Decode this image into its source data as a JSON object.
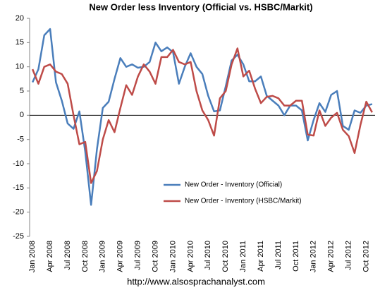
{
  "chart_data": {
    "type": "line",
    "title": "New Order less Inventory (Official vs. HSBC/Markit)",
    "source": "http://www.alsosprachanalyst.com",
    "categories": [
      "Jan 2008",
      null,
      null,
      "Apr 2008",
      null,
      null,
      "Jul 2008",
      null,
      null,
      "Oct 2008",
      null,
      null,
      "Jan 2009",
      null,
      null,
      "Apr 2009",
      null,
      null,
      "Jul 2009",
      null,
      null,
      "Oct 2009",
      null,
      null,
      "Jan 2010",
      null,
      null,
      "Apr 2010",
      null,
      null,
      "Jul 2010",
      null,
      null,
      "Oct 2010",
      null,
      null,
      "Jan 2011",
      null,
      null,
      "Apr 2011",
      null,
      null,
      "Jul 2011",
      null,
      null,
      "Oct 2011",
      null,
      null,
      "Jan 2012",
      null,
      null,
      "Apr 2012",
      null,
      null,
      "Jul 2012",
      null,
      null,
      "Oct 2012",
      null
    ],
    "series": [
      {
        "name": "New Order - Inventory (Official)",
        "color": "#4a7ebb",
        "values": [
          6.8,
          9.5,
          16.5,
          17.8,
          6.8,
          3,
          -1.7,
          -2.8,
          0.8,
          -7.5,
          -18.5,
          -7,
          1.5,
          2.8,
          7.5,
          11.8,
          10,
          10.5,
          9.8,
          10,
          11,
          15,
          13.2,
          14,
          13,
          6.5,
          10,
          12.8,
          10,
          8.5,
          4,
          0.8,
          1,
          6,
          11.3,
          12.5,
          10.5,
          7,
          7,
          8,
          4,
          3,
          2,
          0,
          2,
          2,
          1,
          -5.2,
          -1,
          2.5,
          0.7,
          4.2,
          5,
          -2.2,
          -3,
          1,
          0.5,
          2,
          2.3
        ]
      },
      {
        "name": "New Order - Inventory (HSBC/Markit)",
        "color": "#be4b48",
        "values": [
          9.5,
          6.5,
          10,
          10.5,
          9,
          8.5,
          6.5,
          0,
          -6,
          -5.5,
          -14,
          -11.5,
          -5,
          -1,
          -3.5,
          1.5,
          6.2,
          4.2,
          8,
          10.5,
          9,
          6.5,
          12,
          12,
          13.5,
          11,
          10.5,
          11,
          5,
          1,
          -1,
          -4.2,
          3.5,
          5,
          10.5,
          13.8,
          8,
          9.2,
          5.5,
          2.5,
          3.8,
          4,
          3.5,
          2,
          2,
          3,
          3,
          -4,
          -4.2,
          1,
          -2.2,
          -0.5,
          0.5,
          -3,
          -4.3,
          -7.8,
          -2,
          2.8,
          0.6
        ]
      }
    ],
    "ylim": [
      -25,
      20
    ],
    "yticks": [
      -25,
      -20,
      -15,
      -10,
      -5,
      0,
      5,
      10,
      15,
      20
    ],
    "grid": false
  }
}
